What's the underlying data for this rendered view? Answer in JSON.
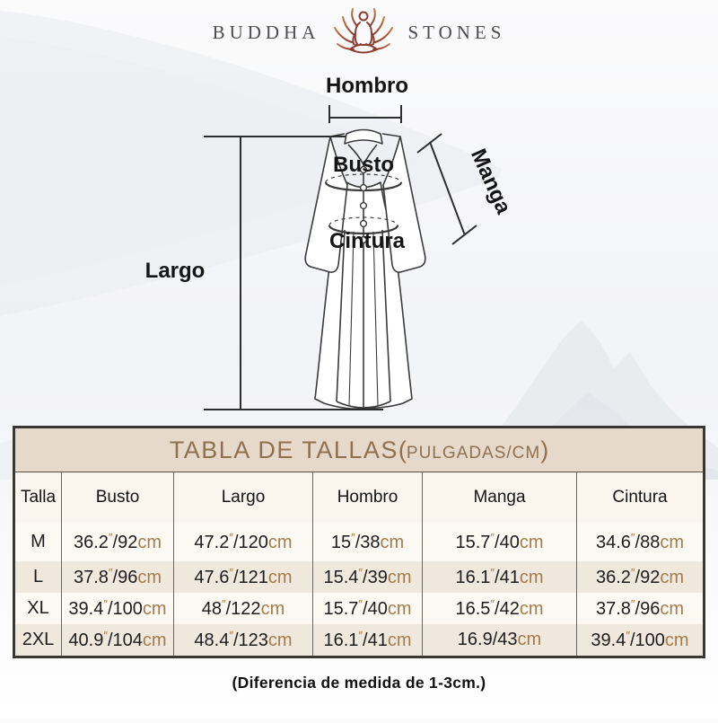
{
  "brand": {
    "left": "BUDDHA",
    "right": "STONES",
    "icon": "lotus-meditation-icon"
  },
  "diagram": {
    "labels": {
      "hombro": "Hombro",
      "busto": "Busto",
      "manga": "Manga",
      "cintura": "Cintura",
      "largo": "Largo"
    }
  },
  "table": {
    "title": {
      "main": "TABLA DE TALLAS",
      "paren_open": "(",
      "sub": "PULGADAS/CM",
      "paren_close": ")"
    },
    "columns": [
      "Talla",
      "Busto",
      "Largo",
      "Hombro",
      "Manga",
      "Cintura"
    ],
    "inch_mark": "″",
    "slash": "/",
    "cm_unit": "cm",
    "rows": [
      {
        "size": "M",
        "values": [
          {
            "inch": "36.2",
            "cm": "92"
          },
          {
            "inch": "47.2",
            "cm": "120"
          },
          {
            "inch": "15",
            "cm": "38"
          },
          {
            "inch": "15.7",
            "cm": "40"
          },
          {
            "inch": "34.6",
            "cm": "88"
          }
        ]
      },
      {
        "size": "L",
        "values": [
          {
            "inch": "37.8",
            "cm": "96"
          },
          {
            "inch": "47.6",
            "cm": "121"
          },
          {
            "inch": "15.4",
            "cm": "39"
          },
          {
            "inch": "16.1",
            "cm": "41"
          },
          {
            "inch": "36.2",
            "cm": "92"
          }
        ]
      },
      {
        "size": "XL",
        "values": [
          {
            "inch": "39.4",
            "cm": "100"
          },
          {
            "inch": "48",
            "cm": "122"
          },
          {
            "inch": "15.7",
            "cm": "40"
          },
          {
            "inch": "16.5",
            "cm": "42"
          },
          {
            "inch": "37.8",
            "cm": "96"
          }
        ]
      },
      {
        "size": "2XL",
        "values": [
          {
            "inch": "40.9",
            "cm": "104"
          },
          {
            "inch": "48.4",
            "cm": "123"
          },
          {
            "inch": "16.1",
            "cm": "41"
          },
          {
            "inch": "16.9",
            "cm": "43",
            "no_inch_mark": true
          },
          {
            "inch": "39.4",
            "cm": "100"
          }
        ]
      }
    ]
  },
  "footer": {
    "note": "(Diferencia de medida de 1-3cm.)"
  },
  "colors": {
    "accent_brown": "#8d7252",
    "unit_brown": "#a37c4c",
    "title_bg": "#e7d9ca",
    "row_base": "#fcf9f3",
    "row_alt": "#f1e8dd",
    "border_dark": "#3a3733",
    "lotus_copper": "#b8653c",
    "lotus_dark": "#8d3a2c"
  }
}
